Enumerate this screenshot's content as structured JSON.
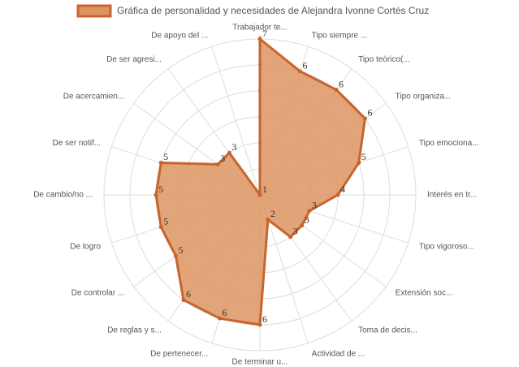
{
  "chart_data": {
    "type": "radar",
    "series": [
      {
        "name": "Gráfica de personalidad y necesidades de Alejandra Ivonne Cortés Cruz",
        "color": "#c8642c",
        "fill": "#dd9461",
        "values": [
          7,
          6,
          6,
          6,
          5,
          4,
          3,
          3,
          3,
          2,
          6,
          6,
          6,
          5,
          5,
          5,
          5,
          3,
          3,
          1
        ]
      }
    ],
    "categories": [
      "Trabajador te...",
      "Tipo siempre ...",
      "Tipo teórico(...",
      "Tipo organiza...",
      "Tipo emociona...",
      "Interés en tr...",
      "Tipo vigoroso...",
      "Extensión soc...",
      "Toma de decis...",
      "Actividad de ...",
      "De terminar u...",
      "De pertenecer...",
      "De reglas y s...",
      "De controlar ...",
      "De logro",
      "De cambio/no ...",
      "De ser notif...",
      "De acercamien...",
      "De ser agresi...",
      "De apoyo del ..."
    ],
    "ylim": [
      1,
      7
    ],
    "yticks": [
      1,
      2,
      3,
      4,
      5,
      6,
      7
    ],
    "grid": true,
    "legend": "top"
  }
}
